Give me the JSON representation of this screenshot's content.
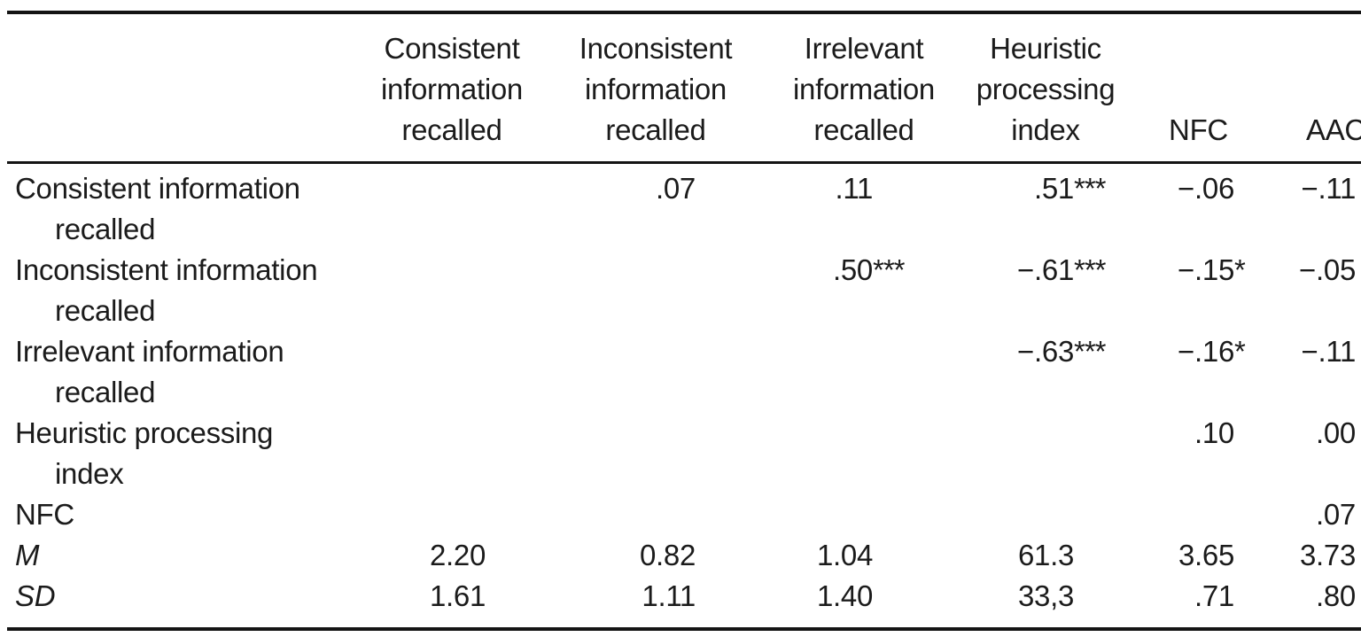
{
  "colors": {
    "text": "#1b1b1b",
    "rule": "#141414",
    "background": "#ffffff"
  },
  "header": {
    "consistent": {
      "l1": "Consistent",
      "l2": "information",
      "l3": "recalled"
    },
    "inconsistent": {
      "l1": "Inconsistent",
      "l2": "information",
      "l3": "recalled"
    },
    "irrelevant": {
      "l1": "Irrelevant",
      "l2": "information",
      "l3": "recalled"
    },
    "heuristic": {
      "l1": "Heuristic",
      "l2": "processing",
      "l3": "index"
    },
    "nfc": "NFC",
    "aac": "AAC"
  },
  "rows": {
    "consistent": {
      "label1": "Consistent information",
      "label2": "recalled",
      "c3": ".07",
      "c4": ".11",
      "c5": ".51",
      "c5s": "***",
      "c6": "−.06",
      "c7": "−.11"
    },
    "inconsistent": {
      "label1": "Inconsistent information",
      "label2": "recalled",
      "c4": ".50",
      "c4s": "***",
      "c5": "−.61",
      "c5s": "***",
      "c6": "−.15",
      "c6s": "*",
      "c7": "−.05"
    },
    "irrelevant": {
      "label1": "Irrelevant information",
      "label2": "recalled",
      "c5": "−.63",
      "c5s": "***",
      "c6": "−.16",
      "c6s": "*",
      "c7": "−.11"
    },
    "heuristic": {
      "label1": "Heuristic processing",
      "label2": "index",
      "c6": ".10",
      "c7": ".00"
    },
    "nfc": {
      "label1": "NFC",
      "c7": ".07"
    },
    "m": {
      "label1": "M",
      "c2": "2.20",
      "c3": "0.82",
      "c4": "1.04",
      "c5": "61.3",
      "c6": "3.65",
      "c7": "3.73"
    },
    "sd": {
      "label1": "SD",
      "c2": "1.61",
      "c3": "1.11",
      "c4": "1.40",
      "c5": "33,3",
      "c6": ".71",
      "c7": ".80"
    }
  }
}
